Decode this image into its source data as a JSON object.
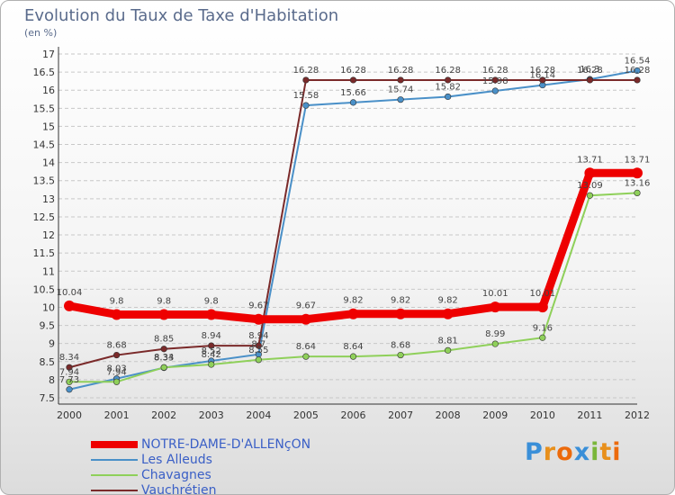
{
  "logo": {
    "text": "Proxiti",
    "letter_colors": [
      "#3a8fd8",
      "#e8901c",
      "#ec6a0c",
      "#3a8fd8",
      "#7ab63a",
      "#e8901c",
      "#ec6a0c"
    ]
  },
  "chart_data": {
    "type": "line",
    "title": "Evolution du Taux de Taxe d'Habitation",
    "subtitle": "(en %)",
    "categories": [
      "2000",
      "2001",
      "2002",
      "2003",
      "2004",
      "2005",
      "2006",
      "2007",
      "2008",
      "2009",
      "2010",
      "2011",
      "2012"
    ],
    "y_ticks": [
      "7.5",
      "8",
      "8.5",
      "9",
      "9.5",
      "10",
      "10.5",
      "11",
      "11.5",
      "12",
      "12.5",
      "13",
      "13.5",
      "14",
      "14.5",
      "15",
      "15.5",
      "16",
      "16.5",
      "17"
    ],
    "ylim": [
      7.5,
      17
    ],
    "grid": "horizontal dashed",
    "legend_position": "bottom-left",
    "series": [
      {
        "name": "NOTRE-DAME-D'ALLENçON",
        "color": "#ee0000",
        "width": "thick",
        "values": [
          10.04,
          9.8,
          9.8,
          9.8,
          9.67,
          9.67,
          9.82,
          9.82,
          9.82,
          10.01,
          10.01,
          13.71,
          13.71
        ],
        "labels": [
          "10.04",
          "9.8",
          "9.8",
          "9.8",
          "9.67",
          "9.67",
          "9.82",
          "9.82",
          "9.82",
          "10.01",
          "10.01",
          "13.71",
          "13.71"
        ]
      },
      {
        "name": "Les Alleuds",
        "color": "#4a90c8",
        "width": "thin",
        "values": [
          7.73,
          8.03,
          8.33,
          8.52,
          8.7,
          15.58,
          15.66,
          15.74,
          15.82,
          15.98,
          16.14,
          16.3,
          16.54
        ],
        "labels": [
          "7.73",
          "8.03",
          "8.33",
          "8.52",
          "8.7",
          "15.58",
          "15.66",
          "15.74",
          "15.82",
          "15.98",
          "16.14",
          "16.3",
          "16.54"
        ]
      },
      {
        "name": "Chavagnes",
        "color": "#8fd05a",
        "width": "thin",
        "values": [
          7.94,
          7.94,
          8.34,
          8.42,
          8.55,
          8.64,
          8.64,
          8.68,
          8.81,
          8.99,
          9.16,
          13.09,
          13.16
        ],
        "labels": [
          "7.94",
          "7.94",
          "8.34",
          "8.42",
          "8.55",
          "8.64",
          "8.64",
          "8.68",
          "8.81",
          "8.99",
          "9.16",
          "13.09",
          "13.16"
        ]
      },
      {
        "name": "Vauchrétien",
        "color": "#7a2a2a",
        "width": "thin",
        "values": [
          8.34,
          8.68,
          8.85,
          8.94,
          8.94,
          16.28,
          16.28,
          16.28,
          16.28,
          16.28,
          16.28,
          16.28,
          16.28
        ],
        "labels": [
          "8.34",
          "8.68",
          "8.85",
          "8.94",
          "8.94",
          "16.28",
          "16.28",
          "16.28",
          "16.28",
          "16.28",
          "16.28",
          "16.28",
          "16.28"
        ]
      }
    ]
  }
}
